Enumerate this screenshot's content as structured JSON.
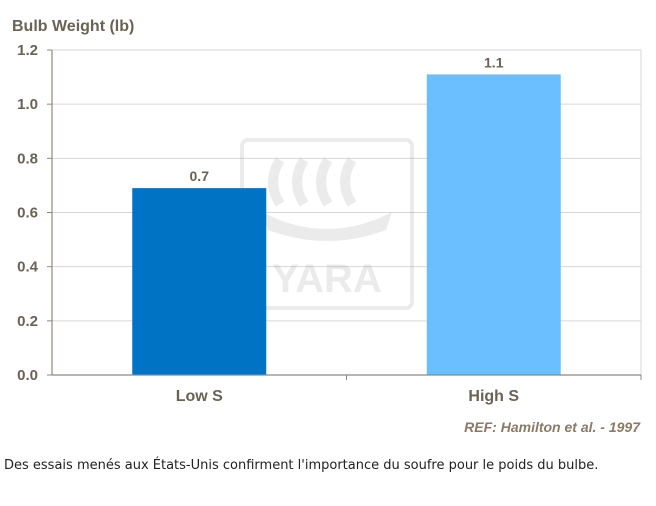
{
  "chart_data": {
    "type": "bar",
    "title": "",
    "ylabel": "Bulb Weight (lb)",
    "xlabel": "",
    "ylim": [
      0,
      1.2
    ],
    "yticks": [
      "0.0",
      "0.2",
      "0.4",
      "0.6",
      "0.8",
      "1.0",
      "1.2"
    ],
    "categories": [
      "Low S",
      "High S"
    ],
    "values": [
      0.69,
      1.11
    ],
    "data_labels": [
      "0.7",
      "1.1"
    ],
    "bar_colors": [
      "#0073c4",
      "#6cbfff"
    ],
    "grid": true,
    "grid_color": "#d7d7d7",
    "axis_color": "#8f887f",
    "text_color": "#6b6256",
    "annotation": "REF: Hamilton et al. - 1997",
    "watermark": "YARA"
  },
  "caption": "Des essais menés aux États-Unis confirment l'importance du soufre pour le poids du bulbe."
}
